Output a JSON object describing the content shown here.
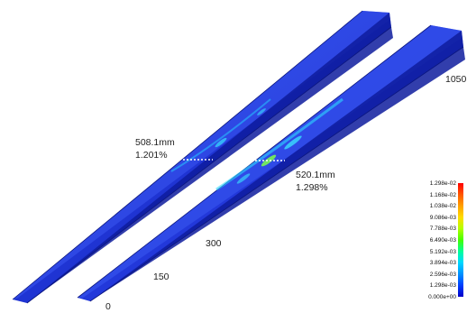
{
  "annotations": {
    "left_length": "508.1mm",
    "left_percent": "1.201%",
    "right_length": "520.1mm",
    "right_percent": "1.298%"
  },
  "scale_labels": {
    "s0": "0",
    "s150": "150",
    "s300": "300",
    "s1050": "1050"
  },
  "legend": {
    "ticks": [
      "1.298e-02",
      "1.168e-02",
      "1.038e-02",
      "9.086e-03",
      "7.788e-03",
      "6.490e-03",
      "5.192e-03",
      "3.894e-03",
      "2.596e-03",
      "1.298e-03",
      "0.000e+00"
    ],
    "colors": [
      "#ff0000",
      "#ff5a00",
      "#ff9f00",
      "#ffdd00",
      "#b6ff00",
      "#46ff00",
      "#00ff9c",
      "#00d8ff",
      "#0090ff",
      "#0040ff",
      "#0000c8"
    ]
  },
  "colors": {
    "beam_main": "#1a2fd6",
    "beam_dark": "#0c1a9c",
    "beam_light": "#3a55f0"
  }
}
